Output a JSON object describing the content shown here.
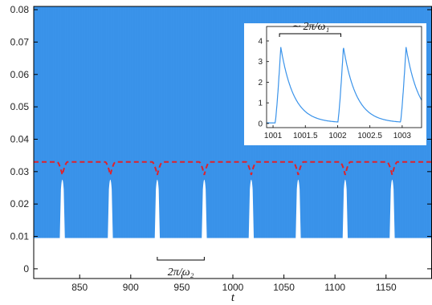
{
  "chart_data": [
    {
      "type": "area",
      "role": "main",
      "xlabel": "t",
      "xlim": [
        805,
        1195
      ],
      "ylim": [
        -0.003,
        0.081
      ],
      "xticks": [
        850,
        900,
        950,
        1000,
        1050,
        1100,
        1150
      ],
      "yticks": [
        0,
        0.01,
        0.02,
        0.03,
        0.04,
        0.05,
        0.06,
        0.07,
        0.08
      ],
      "xtick_labels": [
        "850",
        "900",
        "950",
        "1000",
        "1050",
        "1100",
        "1150"
      ],
      "ytick_labels": [
        "0",
        "0.01",
        "0.02",
        "0.03",
        "0.04",
        "0.05",
        "0.06",
        "0.07",
        "0.08"
      ],
      "fast_oscillation_band": {
        "upper": 0.081,
        "lower_floor": 0.0095,
        "notch_minima_t": [
          833,
          880,
          926,
          972,
          1018,
          1064,
          1110,
          1156
        ],
        "notch_top": 0.03,
        "notch_half_width": 2.5
      },
      "envelope": {
        "style": "dashed",
        "level": 0.033,
        "dip_t": [
          833,
          880,
          926,
          972,
          1018,
          1064,
          1110,
          1156
        ],
        "dip_depth": 0.004
      },
      "annotation": {
        "label": "2π/ω₂",
        "t_start": 926,
        "t_end": 972,
        "y": -0.0
      },
      "colors": {
        "band": "#3a93ea",
        "envelope": "#e0222a"
      }
    },
    {
      "type": "line",
      "role": "inset",
      "xlim": [
        1000.9,
        1003.3
      ],
      "ylim": [
        -0.2,
        4.7
      ],
      "xticks": [
        1001,
        1001.5,
        1002,
        1002.5,
        1003
      ],
      "yticks": [
        0,
        1,
        2,
        3,
        4
      ],
      "xtick_labels": [
        "1001",
        "1001.5",
        "1002",
        "1002.5",
        "1003"
      ],
      "ytick_labels": [
        "0",
        "1",
        "2",
        "3",
        "4"
      ],
      "spike_onsets": [
        1001.03,
        1002.0,
        1002.97
      ],
      "spike_peak": 3.7,
      "annotation": {
        "label": "∼ 2π/ω₁",
        "t_start": 1001.1,
        "t_end": 1002.05,
        "y": 4.35
      },
      "colors": {
        "line": "#3a93ea"
      }
    }
  ]
}
